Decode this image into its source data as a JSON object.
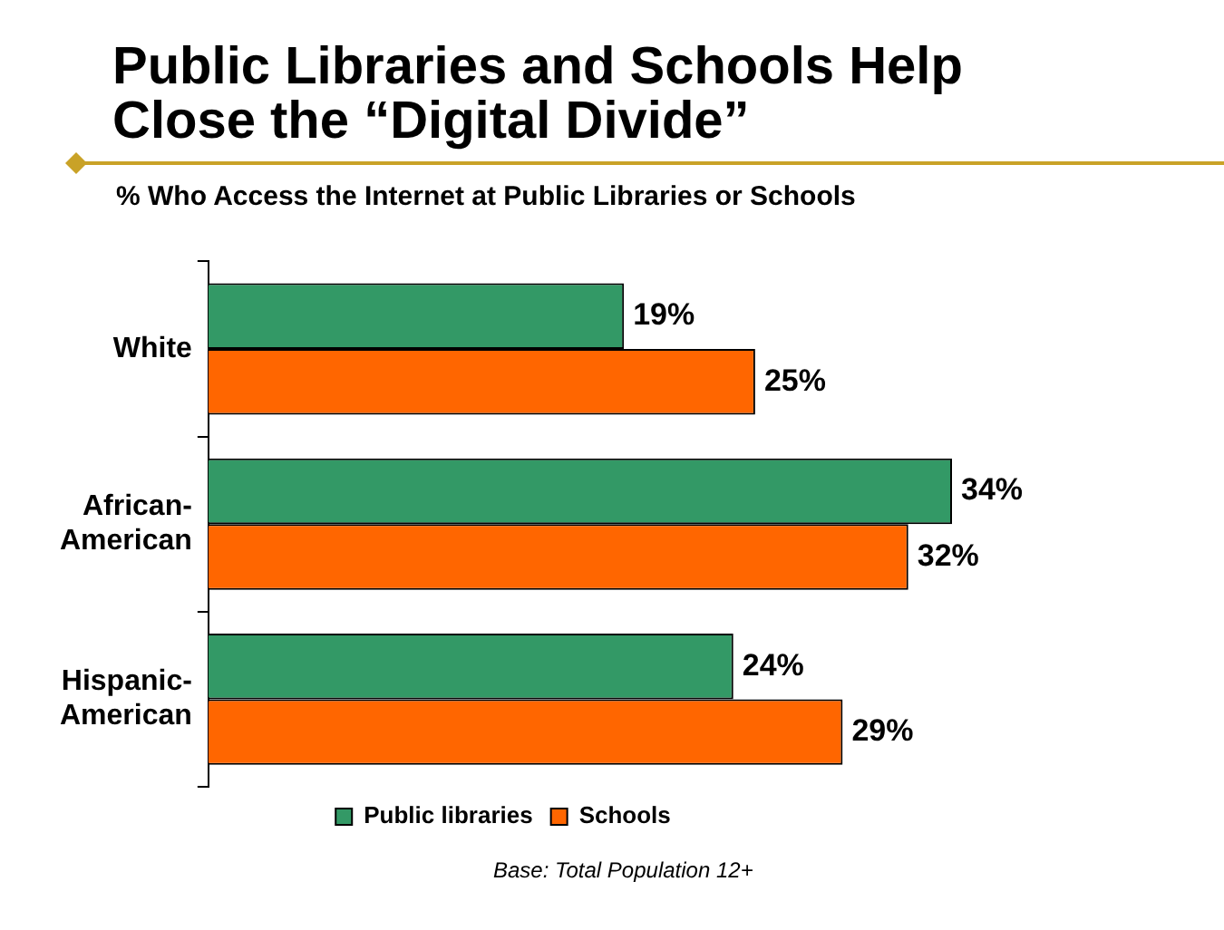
{
  "chart_data": {
    "type": "bar",
    "orientation": "horizontal",
    "title": "Public Libraries and Schools Help Close the “Digital Divide”",
    "subtitle": "% Who Access the Internet at Public Libraries or Schools",
    "categories": [
      "White",
      "African-American",
      "Hispanic-American"
    ],
    "series": [
      {
        "name": "Public libraries",
        "color": "#339966",
        "values": [
          19,
          34,
          24
        ],
        "value_labels": [
          "19%",
          "34%",
          "24%"
        ]
      },
      {
        "name": "Schools",
        "color": "#ff6600",
        "values": [
          25,
          32,
          29
        ],
        "value_labels": [
          "25%",
          "32%",
          "29%"
        ]
      }
    ],
    "legend": "bottom",
    "grid": false,
    "annotations": [
      "Base: Total Population 12+"
    ]
  }
}
